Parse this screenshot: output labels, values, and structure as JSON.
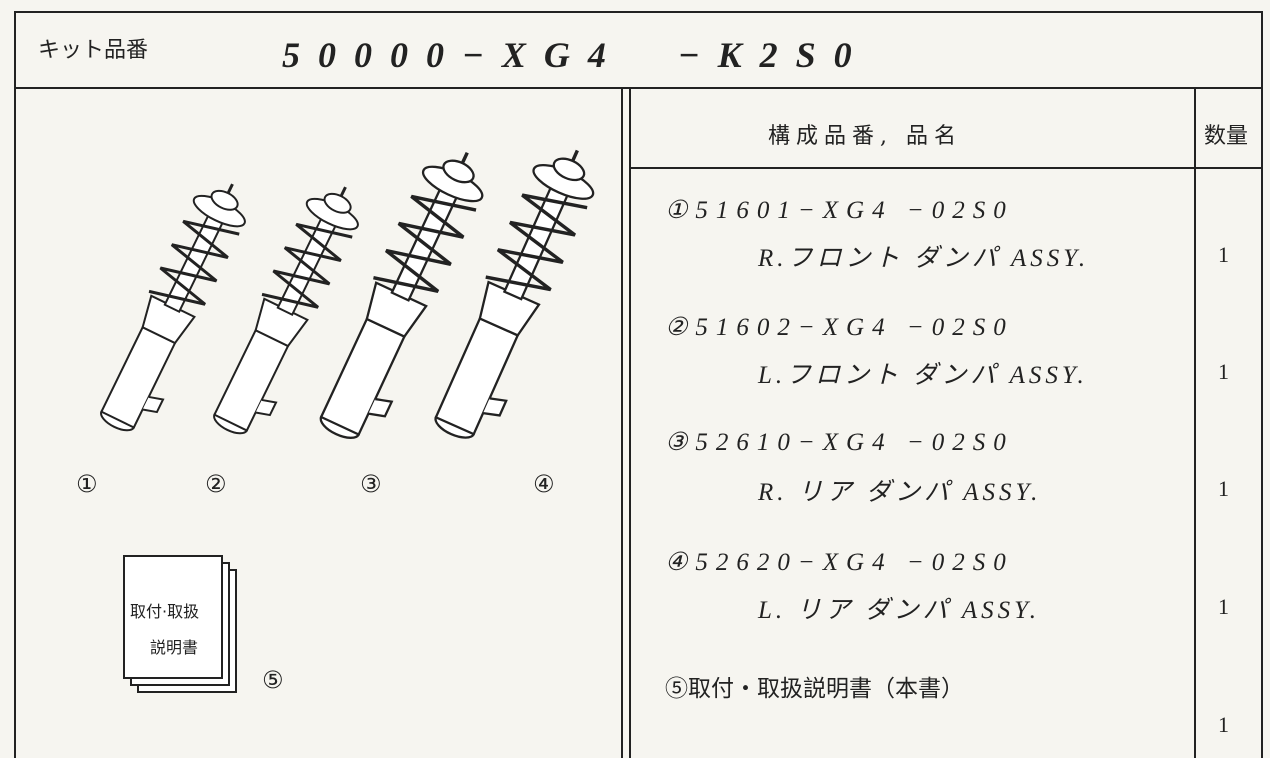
{
  "header": {
    "label": "キット品番",
    "part_number": "50000−XG4　−K2S0"
  },
  "illustration": {
    "labels": [
      "①",
      "②",
      "③",
      "④",
      "⑤"
    ],
    "manual_text": [
      "取付·取扱",
      "説明書"
    ]
  },
  "table": {
    "columns": [
      "構成品番, 品名",
      "数量"
    ],
    "rows": [
      {
        "part": "①51601−XG4 −02S0",
        "name": "R.フロント ダンパ ASSY.",
        "qty": 1
      },
      {
        "part": "②51602−XG4 −02S0",
        "name": "L.フロント ダンパ ASSY.",
        "qty": 1
      },
      {
        "part": "③52610−XG4 −02S0",
        "name": "R. リア ダンパ ASSY.",
        "qty": 1
      },
      {
        "part": "④52620−XG4 −02S0",
        "name": "L. リア ダンパ ASSY.",
        "qty": 1
      },
      {
        "part": "⑤取付・取扱説明書（本書）",
        "qty": 1
      }
    ]
  }
}
